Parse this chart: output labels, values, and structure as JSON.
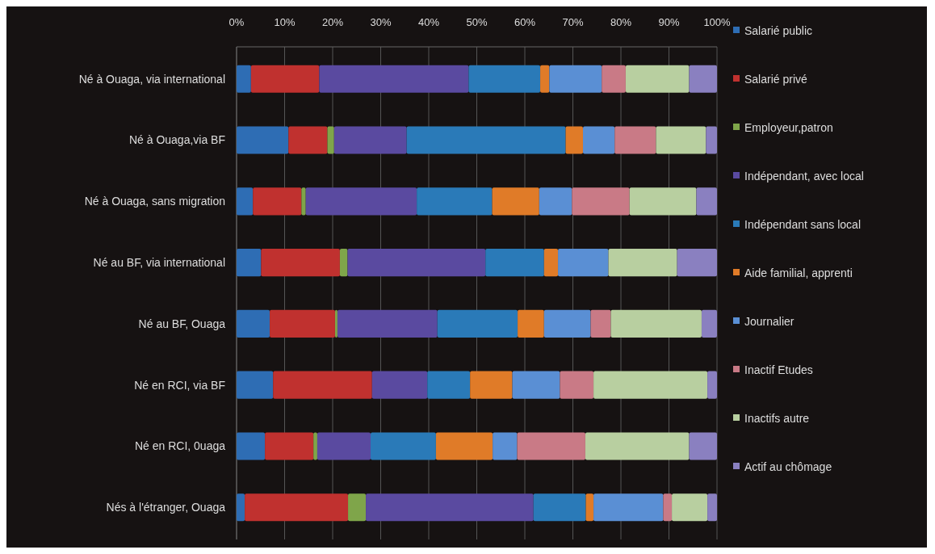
{
  "chart_data": {
    "type": "bar",
    "orientation": "horizontal",
    "stacked": true,
    "grid": "x",
    "legend": "right",
    "categories": [
      "Né à Ouaga, via international",
      "Né à Ouaga,via BF",
      "Né à Ouaga, sans migration",
      "Né au BF, via international",
      "Né au BF, Ouaga",
      "Né en RCI, via BF",
      "Né en RCI, 0uaga",
      "Nés à l'étranger, Ouaga"
    ],
    "xlim": [
      0,
      100
    ],
    "xticks": [
      {
        "value": 0,
        "label": "0%"
      },
      {
        "value": 10,
        "label": "10%"
      },
      {
        "value": 20,
        "label": "20%"
      },
      {
        "value": 30,
        "label": "30%"
      },
      {
        "value": 40,
        "label": "40%"
      },
      {
        "value": 50,
        "label": "50%"
      },
      {
        "value": 60,
        "label": "60%"
      },
      {
        "value": 70,
        "label": "70%"
      },
      {
        "value": 80,
        "label": "80%"
      },
      {
        "value": 90,
        "label": "90%"
      },
      {
        "value": 100,
        "label": "100%"
      }
    ],
    "series": [
      {
        "name": "Salarié public",
        "color": "#2e6db4",
        "values": [
          3.0,
          10.8,
          3.4,
          5.1,
          6.9,
          7.6,
          5.9,
          1.7
        ]
      },
      {
        "name": "Salarié privé",
        "color": "#c0312f",
        "values": [
          14.2,
          8.1,
          10.1,
          16.4,
          13.6,
          20.6,
          10.1,
          21.5
        ]
      },
      {
        "name": "Employeur,patron",
        "color": "#7fa54a",
        "values": [
          0,
          1.4,
          0.9,
          1.6,
          0.5,
          0,
          0.8,
          3.7
        ]
      },
      {
        "name": "Indépendant, avec local",
        "color": "#5a4aa0",
        "values": [
          31.1,
          15.1,
          23.1,
          28.7,
          20.8,
          11.5,
          11.1,
          34.9
        ]
      },
      {
        "name": "Indépendant sans local",
        "color": "#2a7ab8",
        "values": [
          14.9,
          33.1,
          15.7,
          12.2,
          16.7,
          8.9,
          13.6,
          10.9
        ]
      },
      {
        "name": "Aide familial, apprenti",
        "color": "#e07b28",
        "values": [
          1.9,
          3.6,
          9.8,
          2.9,
          5.5,
          8.8,
          11.8,
          1.6
        ]
      },
      {
        "name": "Journalier",
        "color": "#5a8fd4",
        "values": [
          10.9,
          6.6,
          6.8,
          10.5,
          9.7,
          9.9,
          5.1,
          14.5
        ]
      },
      {
        "name": "Inactif Etudes",
        "color": "#c97a86",
        "values": [
          5.0,
          8.6,
          12.0,
          0,
          4.2,
          7.0,
          14.2,
          1.8
        ]
      },
      {
        "name": "Inactifs autre",
        "color": "#b8cfa0",
        "values": [
          13.2,
          10.4,
          13.9,
          14.3,
          18.9,
          23.7,
          21.6,
          7.4
        ]
      },
      {
        "name": "Actif au chômage",
        "color": "#8a80c0",
        "values": [
          5.8,
          2.3,
          4.3,
          8.3,
          3.2,
          2.0,
          5.8,
          2.0
        ]
      }
    ]
  }
}
